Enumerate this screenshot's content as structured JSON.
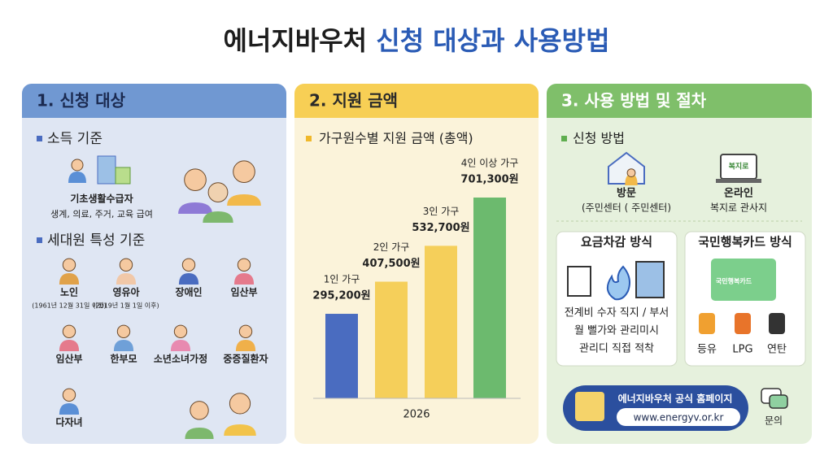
{
  "title": [
    "에너지바우처",
    "신청 대상과 사용방법"
  ],
  "panels": [
    {
      "header": "1. 신청 대상",
      "sections": [
        {
          "title": "소득 기준",
          "items": [
            {
              "label": "기초생활수급자",
              "note": "생계, 의료, 주거, 교육 급여"
            }
          ]
        },
        {
          "title": "세대원 특성 기준",
          "items": [
            {
              "label": "노인",
              "note": "(1961년 12월 31일 이전)"
            },
            {
              "label": "영유아",
              "note": "(2019년 1월 1일 이후)"
            },
            {
              "label": "장애인"
            },
            {
              "label": "임산부"
            },
            {
              "label": "임산부"
            },
            {
              "label": "한부모"
            },
            {
              "label": "소년소녀가정"
            },
            {
              "label": "중증질환자"
            },
            {
              "label": "다자녀"
            }
          ]
        }
      ]
    },
    {
      "header": "2. 지원 금액",
      "section": "가구원수별 지원 금액 (총액)",
      "chart": {
        "type": "bar",
        "categories": [
          "1인 가구",
          "2인 가구",
          "3인 가구",
          "4인 이상 가구"
        ],
        "values": [
          295200,
          407500,
          532700,
          701300
        ],
        "value_labels": [
          "295,200원",
          "407,500원",
          "532,700원",
          "701,300원"
        ],
        "colors": [
          "#4a6cc0",
          "#f5cf5a",
          "#f5cf5a",
          "#6cba6e"
        ],
        "x_label": "2026"
      }
    },
    {
      "header": "3. 사용 방법 및 절차",
      "section": "신청 방법",
      "methods": [
        {
          "label": "방문",
          "note": "(주민센터 ( 주민센터)"
        },
        {
          "label": "온라인",
          "note": "복지로 관사지",
          "screen": "복지로"
        }
      ],
      "deduction": {
        "title": "요금차감 방식",
        "lines": [
          "전계비 수자 직지 / 부서",
          "월 뻘가와 관리미시",
          "관리디 직접 적착"
        ]
      },
      "card": {
        "title": "국민행복카드 방식",
        "card_text": "국민행복카드",
        "fuels": [
          "등유",
          "LPG",
          "연탄"
        ]
      },
      "homepage": {
        "title": "에너지바우처 공식 홈페이지",
        "url": "www.energyv.or.kr"
      },
      "inquiry": "문의"
    }
  ]
}
